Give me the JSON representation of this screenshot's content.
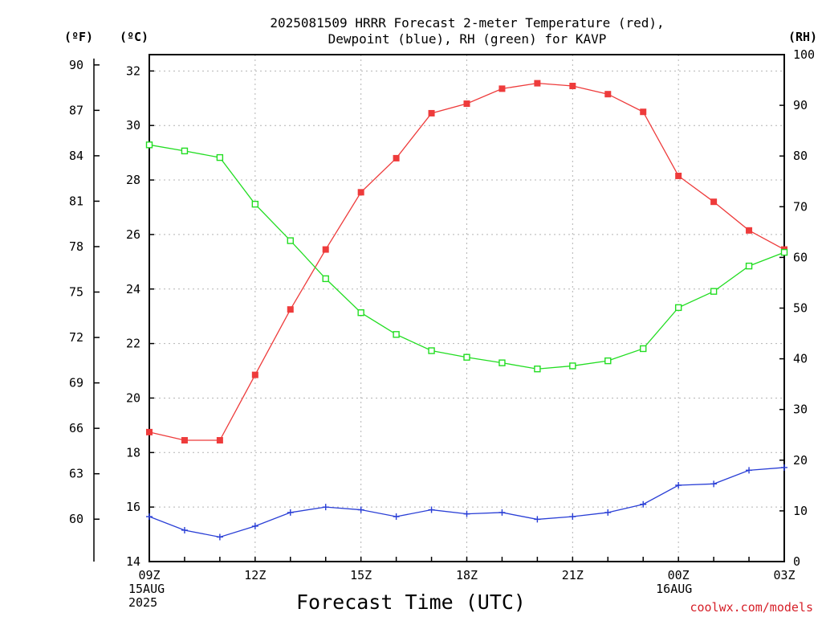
{
  "chart_data": {
    "type": "line",
    "title": [
      "2025081509 HRRR Forecast 2-meter Temperature (red),",
      "Dewpoint (blue), RH (green) for KAVP"
    ],
    "xlabel": "Forecast Time (UTC)",
    "credit": "coolwx.com/models",
    "units": {
      "fahrenheit": "(ºF)",
      "celsius": "(ºC)",
      "rh": "(RH)"
    },
    "x": [
      "09Z",
      "10Z",
      "11Z",
      "12Z",
      "13Z",
      "14Z",
      "15Z",
      "16Z",
      "17Z",
      "18Z",
      "19Z",
      "20Z",
      "21Z",
      "22Z",
      "23Z",
      "00Z",
      "01Z",
      "02Z",
      "03Z"
    ],
    "x_tick_labels": [
      {
        "index": 0,
        "lines": [
          "09Z",
          "15AUG",
          "2025"
        ]
      },
      {
        "index": 3,
        "lines": [
          "12Z"
        ]
      },
      {
        "index": 6,
        "lines": [
          "15Z"
        ]
      },
      {
        "index": 9,
        "lines": [
          "18Z"
        ]
      },
      {
        "index": 12,
        "lines": [
          "21Z"
        ]
      },
      {
        "index": 15,
        "lines": [
          "00Z",
          "16AUG"
        ]
      },
      {
        "index": 18,
        "lines": [
          "03Z"
        ]
      }
    ],
    "axes": {
      "celsius": {
        "range": [
          14,
          32.6
        ],
        "ticks": [
          14,
          16,
          18,
          20,
          22,
          24,
          26,
          28,
          30,
          32
        ]
      },
      "fahrenheit": {
        "range": [
          57.2,
          90.68
        ],
        "ticks": [
          60,
          63,
          66,
          69,
          72,
          75,
          78,
          81,
          84,
          87,
          90
        ]
      },
      "rh": {
        "range": [
          0,
          100
        ],
        "ticks": [
          0,
          10,
          20,
          30,
          40,
          50,
          60,
          70,
          80,
          90,
          100
        ]
      }
    },
    "grid": true,
    "series": [
      {
        "name": "Temperature",
        "axis": "celsius",
        "color": "#ee3b3b",
        "marker": "filled-square",
        "values": [
          18.75,
          18.45,
          18.45,
          20.85,
          23.25,
          25.45,
          27.55,
          28.8,
          30.45,
          30.8,
          31.35,
          31.55,
          31.45,
          31.15,
          30.5,
          28.15,
          27.2,
          26.15,
          25.45
        ]
      },
      {
        "name": "Dewpoint",
        "axis": "celsius",
        "color": "#2a3fd6",
        "marker": "plus",
        "values": [
          15.65,
          15.15,
          14.9,
          15.3,
          15.8,
          16.0,
          15.9,
          15.65,
          15.9,
          15.75,
          15.8,
          15.55,
          15.65,
          15.8,
          16.1,
          16.8,
          16.85,
          17.35,
          17.45
        ]
      },
      {
        "name": "RH",
        "axis": "rh",
        "color": "#22dd22",
        "marker": "open-square",
        "values": [
          82.2,
          81.0,
          79.7,
          70.5,
          63.3,
          55.8,
          49.1,
          44.8,
          41.6,
          40.3,
          39.2,
          38.0,
          38.6,
          39.6,
          42.0,
          50.1,
          53.3,
          58.3,
          61.0
        ]
      }
    ]
  }
}
